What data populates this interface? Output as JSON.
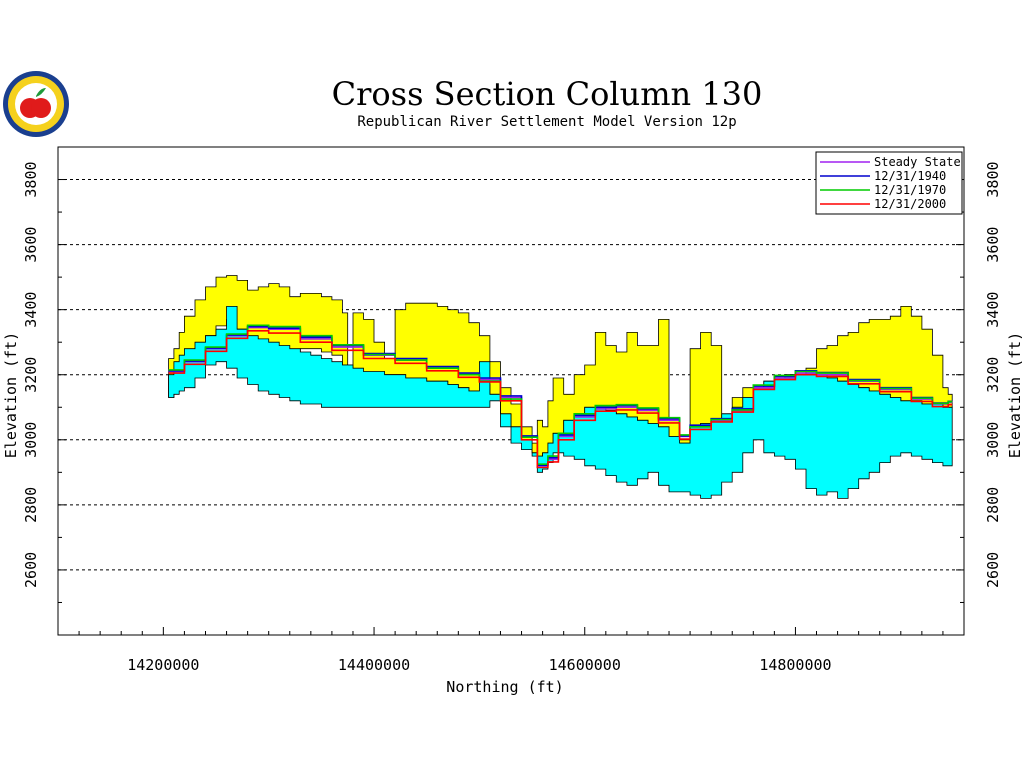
{
  "header": {
    "title": "Cross Section Column 130",
    "subtitle": "Republican River Settlement Model Version 12p"
  },
  "logo": {
    "colors": {
      "ring": "#1a3f8f",
      "band": "#f5d11d",
      "apple": "#e01b1b",
      "leaf": "#1f9a3a"
    }
  },
  "chart_data": {
    "type": "area",
    "xlabel": "Northing (ft)",
    "ylabel": "Elevation (ft)",
    "xlim": [
      14100000,
      14960000
    ],
    "ylim": [
      2400,
      3900
    ],
    "x_ticks": [
      14200000,
      14400000,
      14600000,
      14800000
    ],
    "x_tick_labels": [
      "14200000",
      "14400000",
      "14600000",
      "14800000"
    ],
    "y_ticks": [
      2600,
      2800,
      3000,
      3200,
      3400,
      3600,
      3800
    ],
    "y_tick_labels": [
      "2600",
      "2800",
      "3000",
      "3200",
      "3400",
      "3600",
      "3800"
    ],
    "y_gridlines": [
      2600,
      2800,
      3000,
      3200,
      3400,
      3600,
      3800
    ],
    "grid": "dashed horizontal",
    "legend_position": "top-right",
    "layers": [
      {
        "name": "upper layer (yellow)",
        "color": "#ffff00",
        "x": [
          14205000,
          14210000,
          14215000,
          14220000,
          14230000,
          14240000,
          14250000,
          14260000,
          14270000,
          14280000,
          14290000,
          14300000,
          14310000,
          14320000,
          14330000,
          14340000,
          14350000,
          14360000,
          14370000,
          14375000,
          14380000,
          14390000,
          14400000,
          14410000,
          14420000,
          14430000,
          14440000,
          14450000,
          14460000,
          14470000,
          14480000,
          14490000,
          14500000,
          14510000,
          14520000,
          14530000,
          14540000,
          14550000,
          14555000,
          14560000,
          14565000,
          14570000,
          14580000,
          14590000,
          14600000,
          14610000,
          14620000,
          14630000,
          14640000,
          14650000,
          14660000,
          14670000,
          14680000,
          14690000,
          14700000,
          14710000,
          14720000,
          14730000,
          14740000,
          14750000,
          14760000,
          14770000,
          14780000,
          14790000,
          14800000,
          14810000,
          14820000,
          14830000,
          14840000,
          14850000,
          14860000,
          14870000,
          14880000,
          14890000,
          14900000,
          14910000,
          14920000,
          14930000,
          14940000,
          14945000
        ],
        "top": [
          3250,
          3280,
          3330,
          3380,
          3430,
          3470,
          3500,
          3505,
          3490,
          3460,
          3470,
          3480,
          3470,
          3440,
          3450,
          3450,
          3440,
          3430,
          3390,
          3200,
          3390,
          3370,
          3300,
          3250,
          3400,
          3420,
          3420,
          3420,
          3410,
          3400,
          3390,
          3360,
          3320,
          3240,
          3160,
          3110,
          3040,
          2990,
          3060,
          3040,
          3120,
          3190,
          3140,
          3200,
          3230,
          3330,
          3290,
          3270,
          3330,
          3290,
          3290,
          3370,
          3060,
          3000,
          3280,
          3330,
          3290,
          3050,
          3130,
          3160,
          3150,
          3160,
          3180,
          3180,
          3200,
          3220,
          3280,
          3290,
          3320,
          3330,
          3360,
          3370,
          3370,
          3380,
          3410,
          3380,
          3340,
          3260,
          3160,
          3140
        ],
        "bottom": [
          3130,
          3150,
          3200,
          3240,
          3280,
          3320,
          3350,
          3370,
          3340,
          3250,
          3220,
          3220,
          3240,
          3270,
          3280,
          3280,
          3270,
          3260,
          3230,
          3230,
          3210,
          3200,
          3200,
          3200,
          3200,
          3190,
          3190,
          3180,
          3180,
          3170,
          3160,
          3150,
          3170,
          3140,
          3080,
          3040,
          3000,
          2960,
          2950,
          2960,
          2990,
          3020,
          3060,
          3080,
          3100,
          3100,
          3090,
          3080,
          3070,
          3060,
          3050,
          3040,
          3010,
          2990,
          3040,
          3050,
          3060,
          3080,
          3100,
          3130,
          3160,
          3180,
          3190,
          3200,
          3200,
          3210,
          3200,
          3190,
          3180,
          3170,
          3160,
          3150,
          3140,
          3130,
          3120,
          3120,
          3110,
          3110,
          3100,
          3100
        ]
      },
      {
        "name": "lower layer (cyan)",
        "color": "#00ffff",
        "x": [
          14205000,
          14210000,
          14215000,
          14220000,
          14230000,
          14240000,
          14250000,
          14260000,
          14270000,
          14280000,
          14290000,
          14300000,
          14310000,
          14320000,
          14330000,
          14340000,
          14350000,
          14360000,
          14370000,
          14375000,
          14380000,
          14390000,
          14400000,
          14410000,
          14420000,
          14430000,
          14440000,
          14450000,
          14460000,
          14470000,
          14480000,
          14490000,
          14500000,
          14510000,
          14520000,
          14530000,
          14540000,
          14550000,
          14555000,
          14560000,
          14565000,
          14570000,
          14580000,
          14590000,
          14600000,
          14610000,
          14620000,
          14630000,
          14640000,
          14650000,
          14660000,
          14670000,
          14680000,
          14690000,
          14700000,
          14710000,
          14720000,
          14730000,
          14740000,
          14750000,
          14760000,
          14770000,
          14780000,
          14790000,
          14800000,
          14810000,
          14820000,
          14830000,
          14840000,
          14850000,
          14860000,
          14870000,
          14880000,
          14890000,
          14900000,
          14910000,
          14920000,
          14930000,
          14940000,
          14945000
        ],
        "top": [
          3200,
          3240,
          3260,
          3280,
          3300,
          3320,
          3340,
          3410,
          3340,
          3320,
          3310,
          3300,
          3290,
          3280,
          3270,
          3260,
          3250,
          3240,
          3230,
          3230,
          3220,
          3210,
          3210,
          3200,
          3200,
          3190,
          3190,
          3180,
          3180,
          3170,
          3160,
          3150,
          3240,
          3140,
          3080,
          3040,
          3000,
          2960,
          2950,
          2960,
          2990,
          3020,
          3060,
          3080,
          3100,
          3100,
          3090,
          3080,
          3070,
          3060,
          3050,
          3040,
          3010,
          2990,
          3040,
          3050,
          3060,
          3080,
          3100,
          3130,
          3160,
          3180,
          3190,
          3200,
          3200,
          3210,
          3200,
          3190,
          3180,
          3170,
          3160,
          3150,
          3140,
          3130,
          3120,
          3120,
          3110,
          3110,
          3100,
          3100
        ],
        "bottom": [
          3130,
          3140,
          3150,
          3160,
          3190,
          3230,
          3240,
          3220,
          3190,
          3170,
          3150,
          3140,
          3130,
          3120,
          3110,
          3110,
          3100,
          3100,
          3100,
          3100,
          3100,
          3100,
          3100,
          3100,
          3100,
          3100,
          3100,
          3100,
          3100,
          3100,
          3100,
          3100,
          3100,
          3120,
          3040,
          2990,
          2970,
          2950,
          2900,
          2910,
          2930,
          2960,
          2950,
          2940,
          2920,
          2910,
          2890,
          2870,
          2860,
          2880,
          2900,
          2860,
          2840,
          2840,
          2830,
          2820,
          2830,
          2870,
          2900,
          2960,
          3000,
          2960,
          2950,
          2940,
          2910,
          2850,
          2830,
          2840,
          2820,
          2850,
          2880,
          2900,
          2930,
          2950,
          2960,
          2950,
          2940,
          2930,
          2920,
          2920
        ]
      }
    ],
    "series": [
      {
        "name": "Steady State",
        "color": "#a020f0",
        "x": [
          14205000,
          14220000,
          14240000,
          14260000,
          14280000,
          14300000,
          14330000,
          14360000,
          14390000,
          14420000,
          14450000,
          14480000,
          14500000,
          14520000,
          14540000,
          14555000,
          14565000,
          14575000,
          14590000,
          14610000,
          14630000,
          14650000,
          14670000,
          14690000,
          14700000,
          14720000,
          14740000,
          14760000,
          14780000,
          14800000,
          14820000,
          14850000,
          14880000,
          14910000,
          14930000,
          14945000
        ],
        "y": [
          3210,
          3240,
          3280,
          3320,
          3345,
          3340,
          3310,
          3285,
          3260,
          3245,
          3220,
          3200,
          3185,
          3130,
          3010,
          2920,
          2940,
          3010,
          3070,
          3095,
          3100,
          3090,
          3060,
          3010,
          3040,
          3060,
          3090,
          3160,
          3190,
          3205,
          3200,
          3180,
          3155,
          3125,
          3110,
          3115
        ]
      },
      {
        "name": "12/31/1940",
        "color": "#0000cd",
        "x": [
          14205000,
          14220000,
          14240000,
          14260000,
          14280000,
          14300000,
          14330000,
          14360000,
          14390000,
          14420000,
          14450000,
          14480000,
          14500000,
          14520000,
          14540000,
          14555000,
          14565000,
          14575000,
          14590000,
          14610000,
          14630000,
          14650000,
          14670000,
          14690000,
          14700000,
          14720000,
          14740000,
          14760000,
          14780000,
          14800000,
          14820000,
          14850000,
          14880000,
          14910000,
          14930000,
          14945000
        ],
        "y": [
          3212,
          3242,
          3282,
          3322,
          3348,
          3343,
          3315,
          3290,
          3265,
          3250,
          3225,
          3205,
          3190,
          3135,
          3012,
          2922,
          2945,
          3015,
          3075,
          3100,
          3105,
          3095,
          3065,
          3012,
          3045,
          3065,
          3095,
          3165,
          3195,
          3212,
          3207,
          3185,
          3160,
          3130,
          3113,
          3118
        ]
      },
      {
        "name": "12/31/1970",
        "color": "#00cc00",
        "x": [
          14205000,
          14220000,
          14240000,
          14260000,
          14280000,
          14300000,
          14330000,
          14360000,
          14390000,
          14420000,
          14450000,
          14480000,
          14500000,
          14520000,
          14540000,
          14555000,
          14565000,
          14575000,
          14590000,
          14610000,
          14630000,
          14650000,
          14670000,
          14690000,
          14700000,
          14720000,
          14740000,
          14760000,
          14780000,
          14800000,
          14820000,
          14850000,
          14880000,
          14910000,
          14930000,
          14945000
        ],
        "y": [
          3215,
          3245,
          3285,
          3325,
          3352,
          3348,
          3320,
          3292,
          3262,
          3245,
          3220,
          3200,
          3180,
          3125,
          3008,
          2925,
          2950,
          3020,
          3080,
          3105,
          3108,
          3098,
          3068,
          3015,
          3040,
          3062,
          3092,
          3168,
          3198,
          3210,
          3205,
          3182,
          3158,
          3128,
          3112,
          3117
        ]
      },
      {
        "name": "12/31/2000",
        "color": "#ff0000",
        "x": [
          14205000,
          14220000,
          14240000,
          14260000,
          14280000,
          14300000,
          14330000,
          14360000,
          14390000,
          14420000,
          14450000,
          14480000,
          14500000,
          14520000,
          14540000,
          14555000,
          14565000,
          14575000,
          14590000,
          14610000,
          14630000,
          14650000,
          14670000,
          14690000,
          14700000,
          14720000,
          14740000,
          14760000,
          14780000,
          14800000,
          14820000,
          14850000,
          14880000,
          14910000,
          14930000,
          14945000
        ],
        "y": [
          3205,
          3232,
          3272,
          3312,
          3335,
          3328,
          3300,
          3275,
          3250,
          3235,
          3212,
          3192,
          3178,
          3120,
          3000,
          2915,
          2932,
          3000,
          3060,
          3088,
          3092,
          3082,
          3052,
          3002,
          3032,
          3055,
          3085,
          3155,
          3185,
          3200,
          3195,
          3172,
          3148,
          3118,
          3102,
          3108
        ]
      }
    ]
  }
}
